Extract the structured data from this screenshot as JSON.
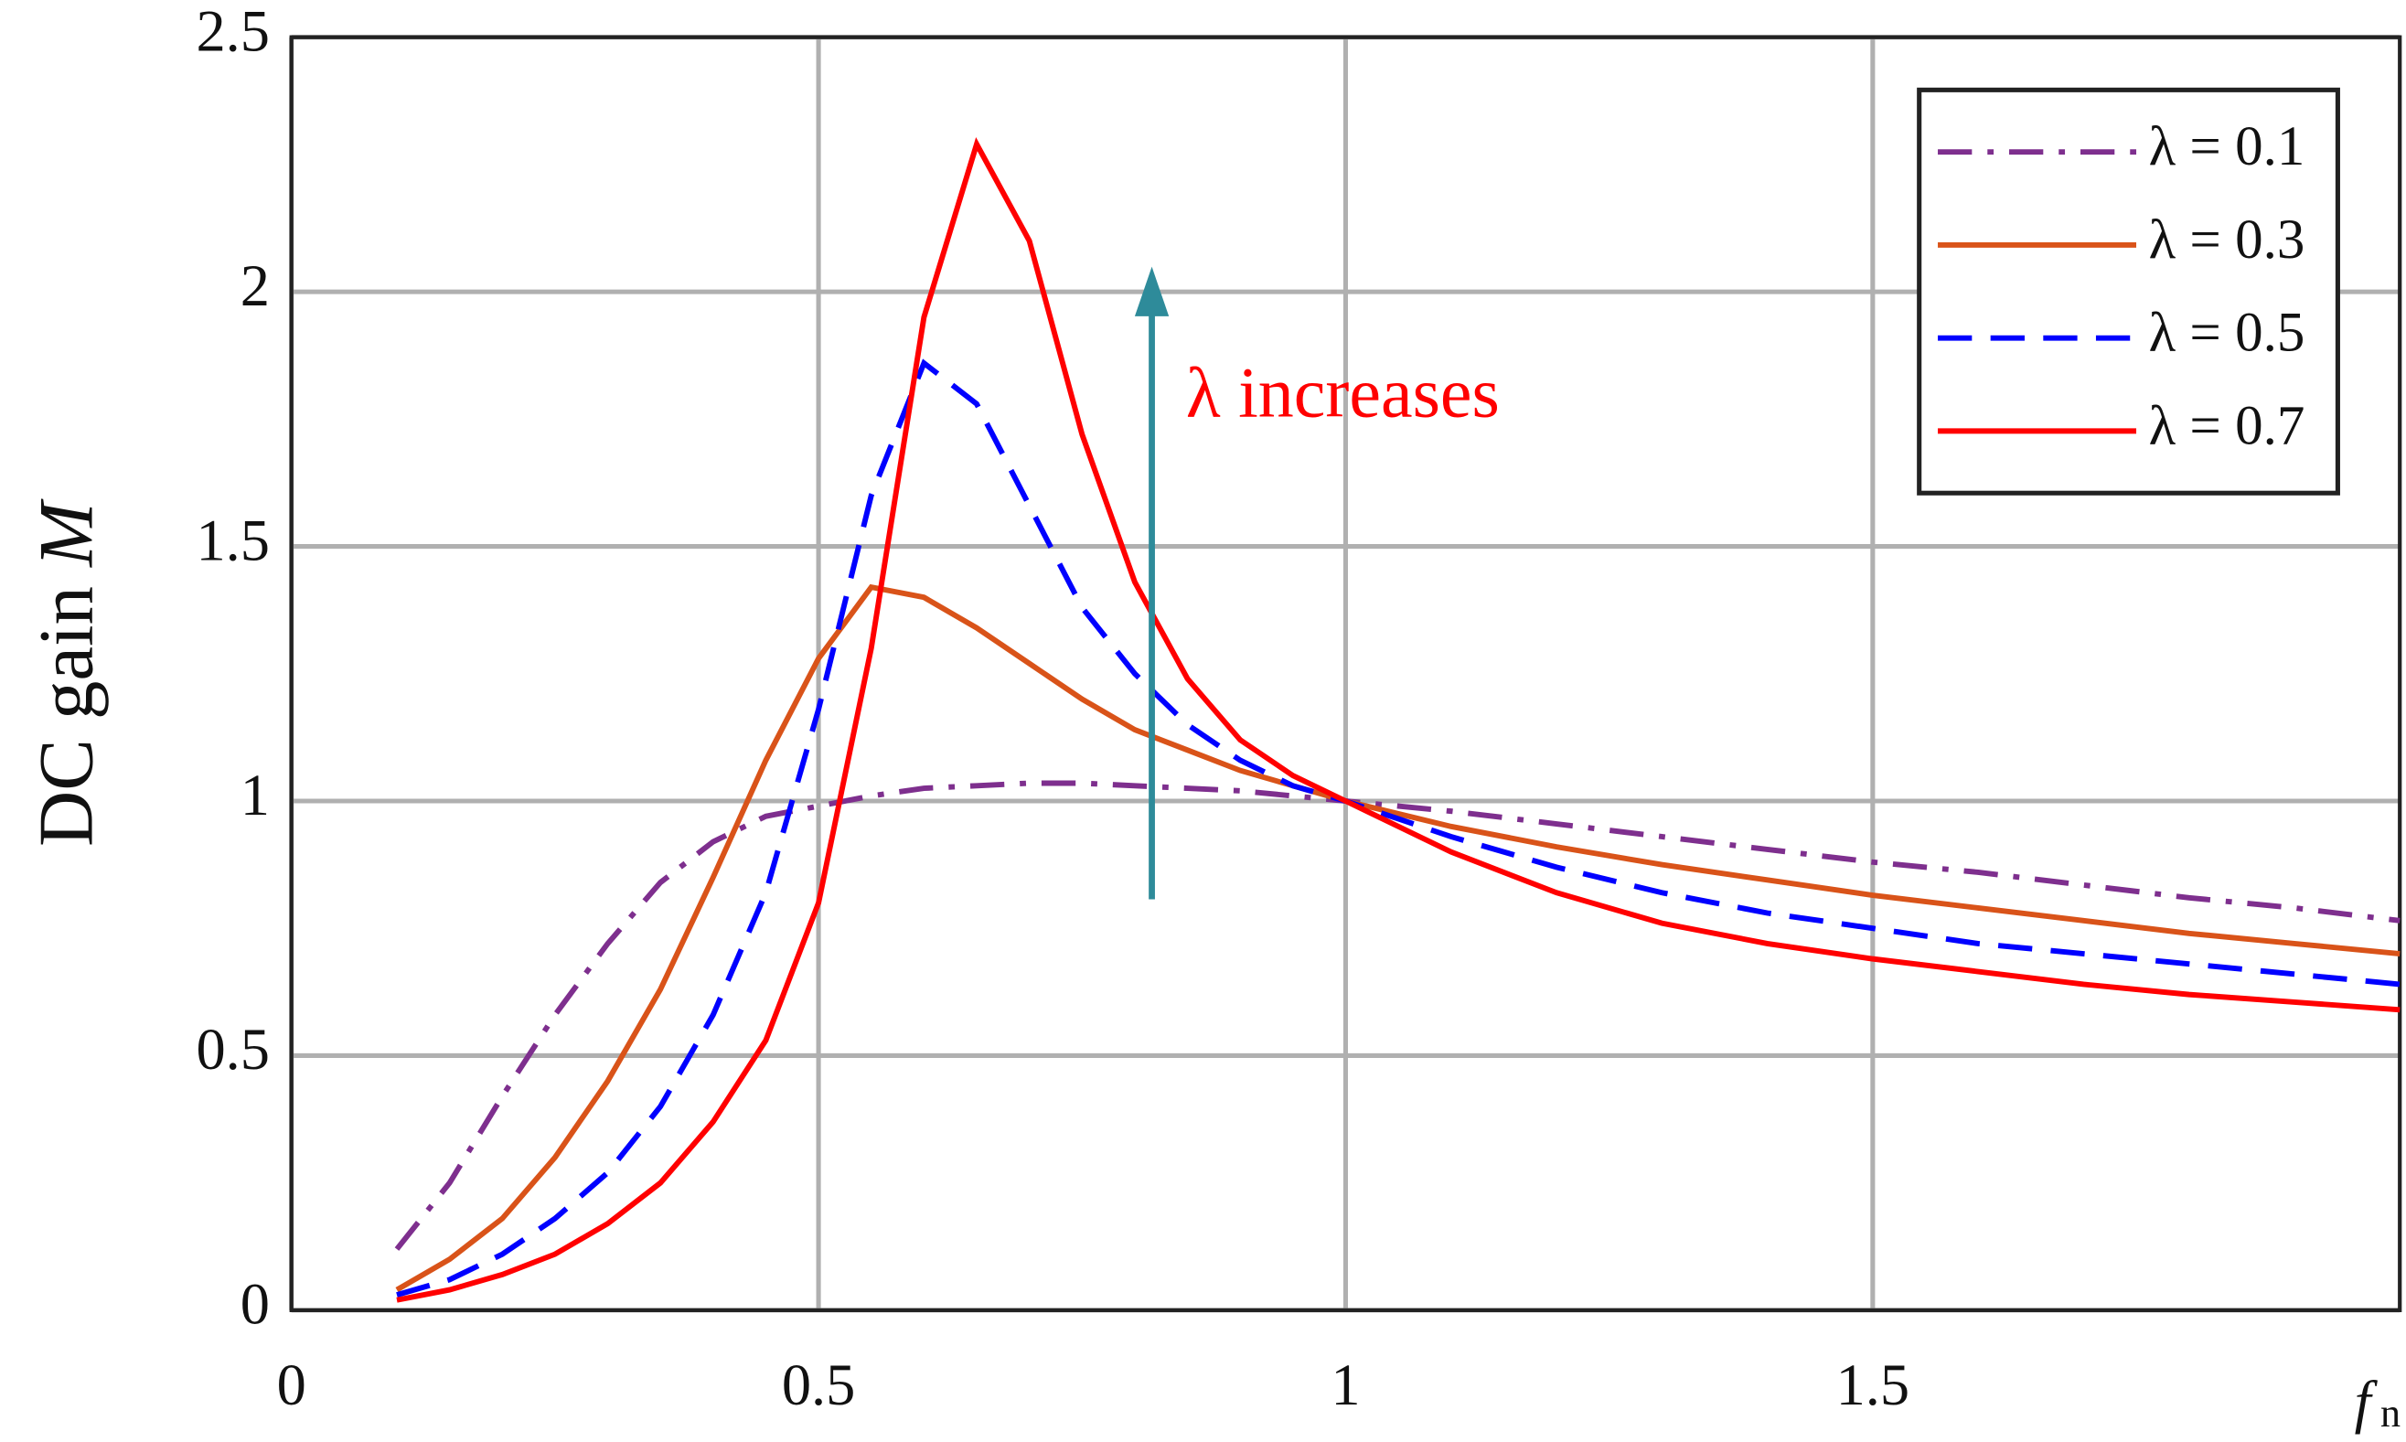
{
  "chart_data": {
    "type": "line",
    "x_label": "f",
    "x_label_sub": "n",
    "y_label": "DC gain",
    "y_label_italic": "M",
    "annotation": "λ increases",
    "x": [
      0.1,
      0.15,
      0.2,
      0.25,
      0.3,
      0.35,
      0.4,
      0.45,
      0.5,
      0.55,
      0.6,
      0.65,
      0.7,
      0.75,
      0.8,
      0.85,
      0.9,
      0.95,
      1.0,
      1.1,
      1.2,
      1.3,
      1.4,
      1.5,
      1.6,
      1.7,
      1.8,
      1.9,
      2.0
    ],
    "series": [
      {
        "name": "λ = 0.1",
        "color": "#7e2f8e",
        "dash": "dashdot",
        "values": [
          0.12,
          0.25,
          0.42,
          0.58,
          0.72,
          0.84,
          0.92,
          0.97,
          0.99,
          1.01,
          1.025,
          1.03,
          1.035,
          1.035,
          1.03,
          1.025,
          1.02,
          1.01,
          1.0,
          0.98,
          0.955,
          0.93,
          0.905,
          0.88,
          0.86,
          0.835,
          0.81,
          0.79,
          0.765
        ]
      },
      {
        "name": "λ = 0.3",
        "color": "#d95319",
        "dash": "solid",
        "values": [
          0.04,
          0.1,
          0.18,
          0.3,
          0.45,
          0.63,
          0.85,
          1.08,
          1.28,
          1.42,
          1.4,
          1.34,
          1.27,
          1.2,
          1.14,
          1.1,
          1.06,
          1.03,
          1.0,
          0.95,
          0.91,
          0.875,
          0.845,
          0.815,
          0.79,
          0.765,
          0.74,
          0.72,
          0.7
        ]
      },
      {
        "name": "λ = 0.5",
        "color": "#0000ff",
        "dash": "dashed",
        "values": [
          0.03,
          0.06,
          0.11,
          0.18,
          0.27,
          0.4,
          0.58,
          0.82,
          1.18,
          1.6,
          1.86,
          1.78,
          1.58,
          1.38,
          1.25,
          1.15,
          1.08,
          1.03,
          1.0,
          0.93,
          0.87,
          0.82,
          0.78,
          0.75,
          0.72,
          0.7,
          0.68,
          0.66,
          0.64
        ]
      },
      {
        "name": "λ = 0.7",
        "color": "#ff0000",
        "dash": "solid",
        "values": [
          0.02,
          0.04,
          0.07,
          0.11,
          0.17,
          0.25,
          0.37,
          0.53,
          0.8,
          1.3,
          1.95,
          2.29,
          2.1,
          1.72,
          1.43,
          1.24,
          1.12,
          1.05,
          1.0,
          0.9,
          0.82,
          0.76,
          0.72,
          0.69,
          0.665,
          0.64,
          0.62,
          0.605,
          0.59
        ]
      }
    ],
    "xlim": [
      0,
      2
    ],
    "ylim": [
      0,
      2.5
    ],
    "xticks": [
      0,
      0.5,
      1,
      1.5
    ],
    "yticks": [
      0,
      0.5,
      1,
      1.5,
      2,
      2.5
    ],
    "grid": true,
    "legend": "top-right"
  }
}
